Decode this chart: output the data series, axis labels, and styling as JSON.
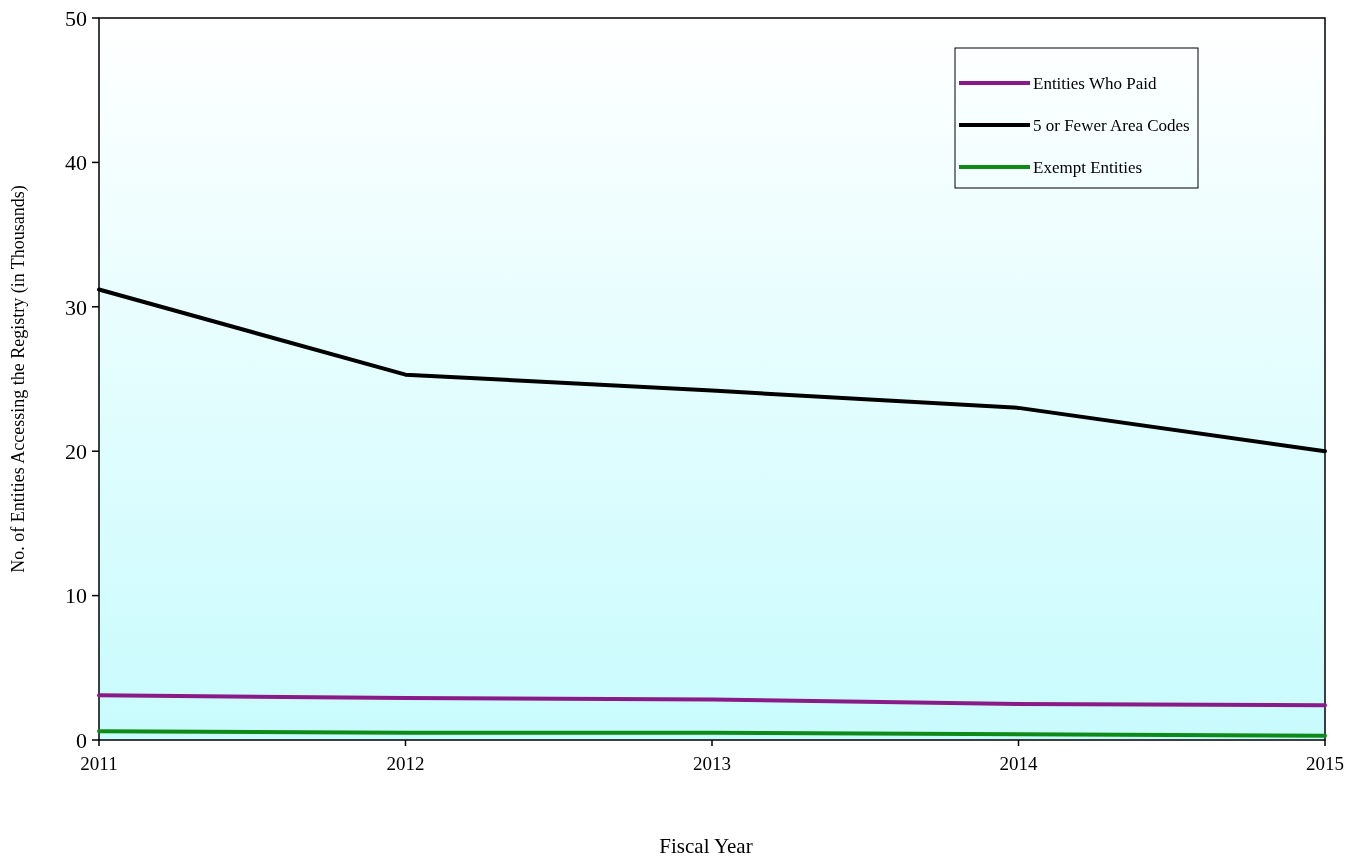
{
  "chart_data": {
    "type": "line",
    "xlabel": "Fiscal Year",
    "ylabel": "No. of Entities Accessing the Registry (in Thousands)",
    "x": [
      2011,
      2012,
      2013,
      2014,
      2015
    ],
    "series": [
      {
        "name": "Entities Who Paid",
        "color": "#8b1a89",
        "values": [
          3.1,
          2.9,
          2.8,
          2.5,
          2.4
        ]
      },
      {
        "name": "5 or Fewer Area Codes",
        "color": "#000000",
        "values": [
          31.2,
          25.3,
          24.2,
          23.0,
          20.0
        ]
      },
      {
        "name": "Exempt Entities",
        "color": "#0e8a16",
        "values": [
          0.6,
          0.5,
          0.5,
          0.4,
          0.3
        ]
      }
    ],
    "xlim": [
      2011,
      2015
    ],
    "xticks": [
      2011,
      2012,
      2013,
      2014,
      2015
    ],
    "ylim": [
      0,
      50
    ],
    "yticks": [
      0,
      10,
      20,
      30,
      40,
      50
    ],
    "grid": false,
    "legend": "top right",
    "marker": "none",
    "line_style": "solid"
  }
}
